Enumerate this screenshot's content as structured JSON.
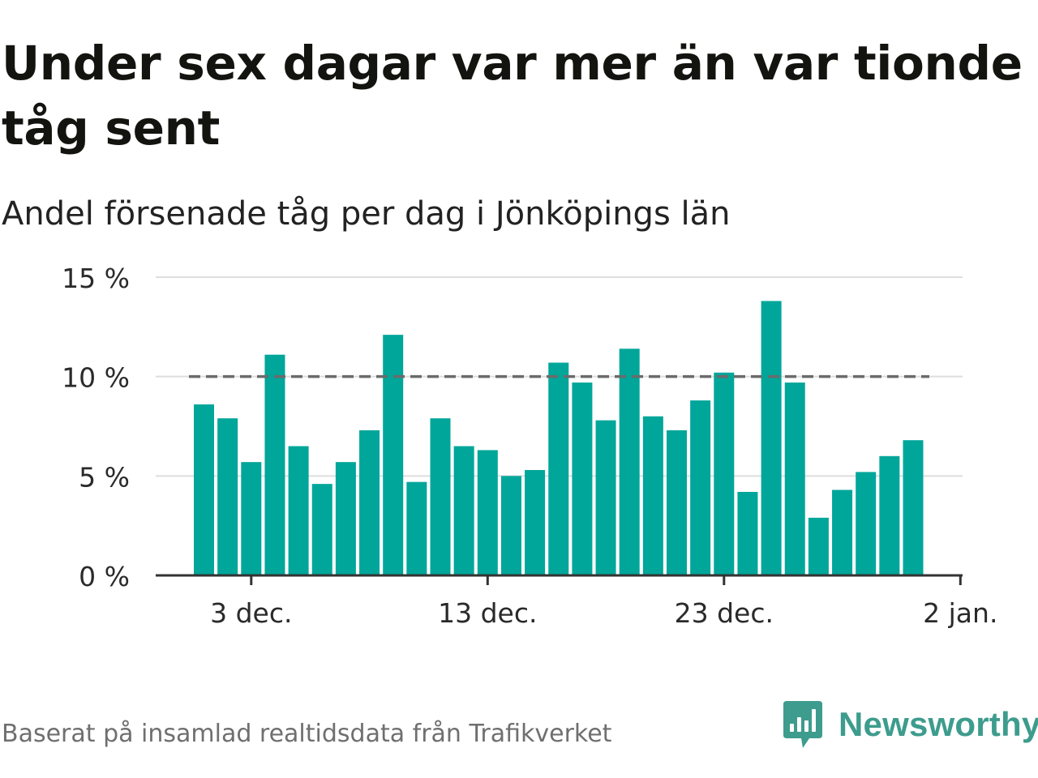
{
  "header": {
    "title": "Under sex dagar var mer än var tionde tåg sent",
    "subtitle": "Andel försenade tåg per dag i Jönköpings län"
  },
  "footer": {
    "source": "Baserat på insamlad realtidsdata från Trafikverket",
    "brand": "Newsworthy"
  },
  "colors": {
    "bar": "#00a69a",
    "threshold_line": "#6b6b6b",
    "grid": "#dedede",
    "axis": "#333333",
    "brand": "#3d9c8d"
  },
  "chart_data": {
    "type": "bar",
    "x_start": "2023-12-01",
    "x_labels": [
      "3 dec.",
      "13 dec.",
      "23 dec.",
      "2 jan."
    ],
    "values": [
      8.6,
      7.9,
      5.7,
      11.1,
      6.5,
      4.6,
      5.7,
      7.3,
      12.1,
      4.7,
      7.9,
      6.5,
      6.3,
      5.0,
      5.3,
      10.7,
      9.7,
      7.8,
      11.4,
      8.0,
      7.3,
      8.8,
      10.2,
      4.2,
      13.8,
      9.7,
      2.9,
      4.3,
      5.2,
      6.0,
      6.8
    ],
    "y_ticks": [
      "0 %",
      "5 %",
      "10 %",
      "15 %"
    ],
    "ylim": [
      0,
      15
    ],
    "threshold": 10,
    "grid": true
  }
}
